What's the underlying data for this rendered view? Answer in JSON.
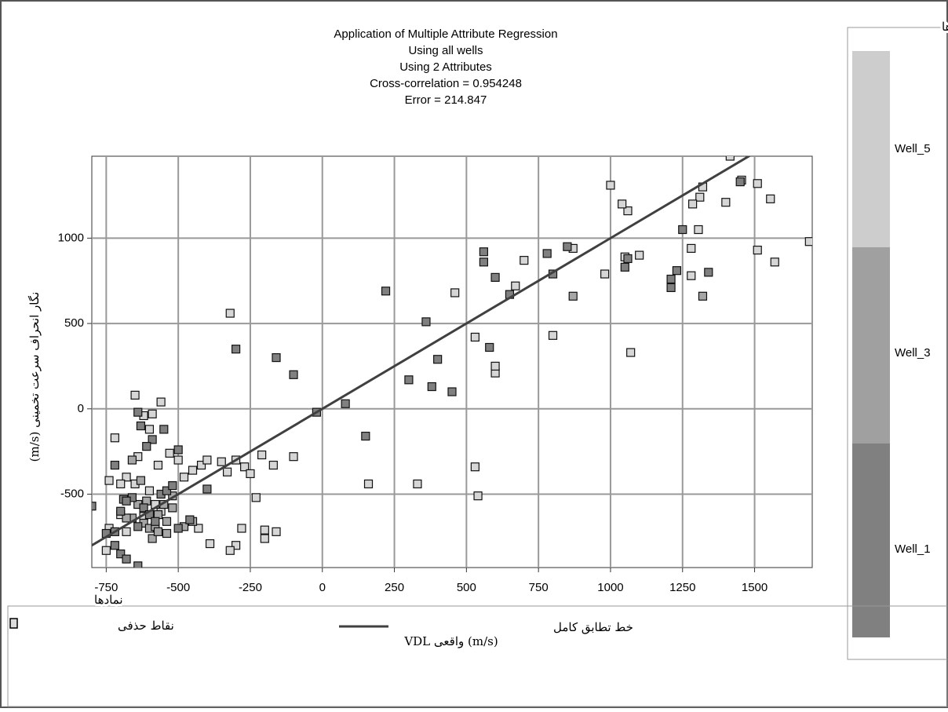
{
  "chart_data": {
    "type": "scatter",
    "title_lines": [
      "Application of Multiple Attribute Regression",
      "Using all wells",
      "Using 2 Attributes",
      "Cross-correlation = 0.954248",
      "Error = 214.847"
    ],
    "xlabel": "VDL واقعی (m/s)",
    "ylabel": "(m/s) نگار انحراف سرعت تخمینی",
    "xlim": [
      -800,
      1700
    ],
    "ylim": [
      -930,
      1480
    ],
    "xticks": [
      -750,
      -500,
      -250,
      0,
      250,
      500,
      750,
      1000,
      1250,
      1500
    ],
    "yticks": [
      -500,
      0,
      500,
      1000
    ],
    "grid": true,
    "legend_title": "نام چاه ها",
    "series": [
      {
        "name": "Well_5",
        "color": "#d6d6d6",
        "x": [
          1415,
          1455,
          1510,
          1555,
          1570,
          1510,
          1400,
          1320,
          1310,
          1285,
          1305,
          1280,
          1280,
          1100,
          1050,
          1060,
          1040,
          1000,
          980,
          1070,
          1690,
          870,
          800,
          700,
          670,
          600,
          600,
          530,
          460,
          160,
          330,
          530,
          540,
          -320,
          -720,
          -740,
          -680,
          -650,
          -620,
          -590,
          -560,
          -600,
          -640,
          -570,
          -530,
          -500,
          -480,
          -450,
          -420,
          -400,
          -350,
          -330,
          -300,
          -270,
          -250,
          -230,
          -210,
          -200,
          -200,
          -170,
          -160,
          -100,
          -300,
          -320,
          -280,
          -390,
          -430,
          -650,
          -600,
          -560,
          -700,
          -740,
          -750,
          -680,
          -700,
          -620,
          -580
        ],
        "y": [
          1480,
          1340,
          1320,
          1230,
          860,
          930,
          1210,
          1300,
          1240,
          1200,
          1050,
          940,
          780,
          900,
          890,
          1160,
          1200,
          1310,
          790,
          330,
          980,
          940,
          430,
          870,
          720,
          210,
          250,
          420,
          680,
          -440,
          -440,
          -340,
          -510,
          560,
          -170,
          -420,
          -400,
          80,
          -40,
          -30,
          40,
          -120,
          -280,
          -330,
          -260,
          -300,
          -400,
          -360,
          -330,
          -300,
          -310,
          -370,
          -300,
          -340,
          -380,
          -520,
          -270,
          -760,
          -710,
          -330,
          -720,
          -280,
          -800,
          -830,
          -700,
          -790,
          -700,
          -440,
          -480,
          -600,
          -620,
          -700,
          -830,
          -720,
          -440,
          -630,
          -560
        ]
      },
      {
        "name": "Well_3",
        "color": "#a6a6a6",
        "x": [
          -660,
          -640,
          -620,
          -600,
          -580,
          -540,
          -570,
          -610,
          -520,
          -480,
          -450,
          -550,
          -590,
          -570,
          -540,
          -680,
          -520,
          1320,
          870,
          -660,
          -630
        ],
        "y": [
          -640,
          -560,
          -670,
          -700,
          -690,
          -660,
          -620,
          -540,
          -580,
          -690,
          -660,
          -560,
          -760,
          -720,
          -730,
          -640,
          -510,
          660,
          660,
          -300,
          -420
        ]
      },
      {
        "name": "Well_1",
        "color": "#808080",
        "x": [
          1450,
          1250,
          1340,
          1210,
          1210,
          1230,
          1050,
          1060,
          850,
          800,
          780,
          650,
          600,
          580,
          560,
          560,
          450,
          400,
          380,
          360,
          300,
          220,
          150,
          80,
          -20,
          -800,
          -750,
          -720,
          -700,
          -680,
          -640,
          -700,
          -690,
          -660,
          -640,
          -620,
          -600,
          -580,
          -560,
          -540,
          -520,
          -500,
          -500,
          -460,
          -400,
          -590,
          -630,
          -640,
          -610,
          -550,
          -720,
          -680,
          -720,
          -300,
          -160,
          -100
        ],
        "y": [
          1330,
          1050,
          800,
          760,
          710,
          810,
          830,
          880,
          950,
          790,
          910,
          670,
          770,
          360,
          920,
          860,
          100,
          290,
          130,
          510,
          170,
          690,
          -160,
          30,
          -20,
          -570,
          -730,
          -800,
          -850,
          -880,
          -920,
          -600,
          -530,
          -520,
          -690,
          -580,
          -620,
          -660,
          -500,
          -480,
          -450,
          -240,
          -700,
          -650,
          -470,
          -180,
          -100,
          -20,
          -220,
          -120,
          -330,
          -540,
          -720,
          350,
          300,
          200
        ]
      }
    ],
    "fit_line": {
      "name": "خط تطابق کامل",
      "color": "#404040",
      "x": [
        -800,
        1500
      ],
      "y": [
        -800,
        1500
      ]
    },
    "symbols_title": "نمادها",
    "deleted_points_label": "نقاط حذفی"
  }
}
